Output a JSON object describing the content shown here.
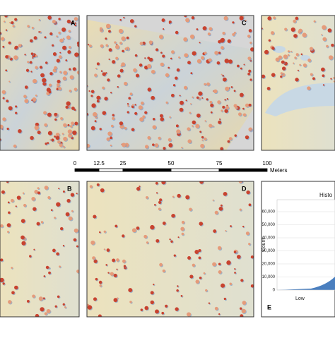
{
  "panels": [
    {
      "label": "A"
    },
    {
      "label": "C"
    },
    {
      "label": "B"
    },
    {
      "label": "D"
    }
  ],
  "scale_bar": {
    "ticks": [
      0,
      12.5,
      25,
      50,
      75,
      100
    ],
    "unit": "Meters"
  },
  "histogram": {
    "panel_label": "E",
    "title": "Histo",
    "y_label": "Count",
    "x_label_low": "Low",
    "ylim": [
      0,
      60000
    ],
    "yticks": [
      0,
      {
        "value": 10000,
        "label": "10,000"
      },
      {
        "value": 20000,
        "label": "20,000"
      },
      {
        "value": 30000,
        "label": "30,000"
      },
      {
        "value": 40000,
        "label": "40,000"
      },
      {
        "value": 50000,
        "label": "50,000"
      },
      {
        "value": 60000,
        "label": "60,000"
      }
    ]
  }
}
